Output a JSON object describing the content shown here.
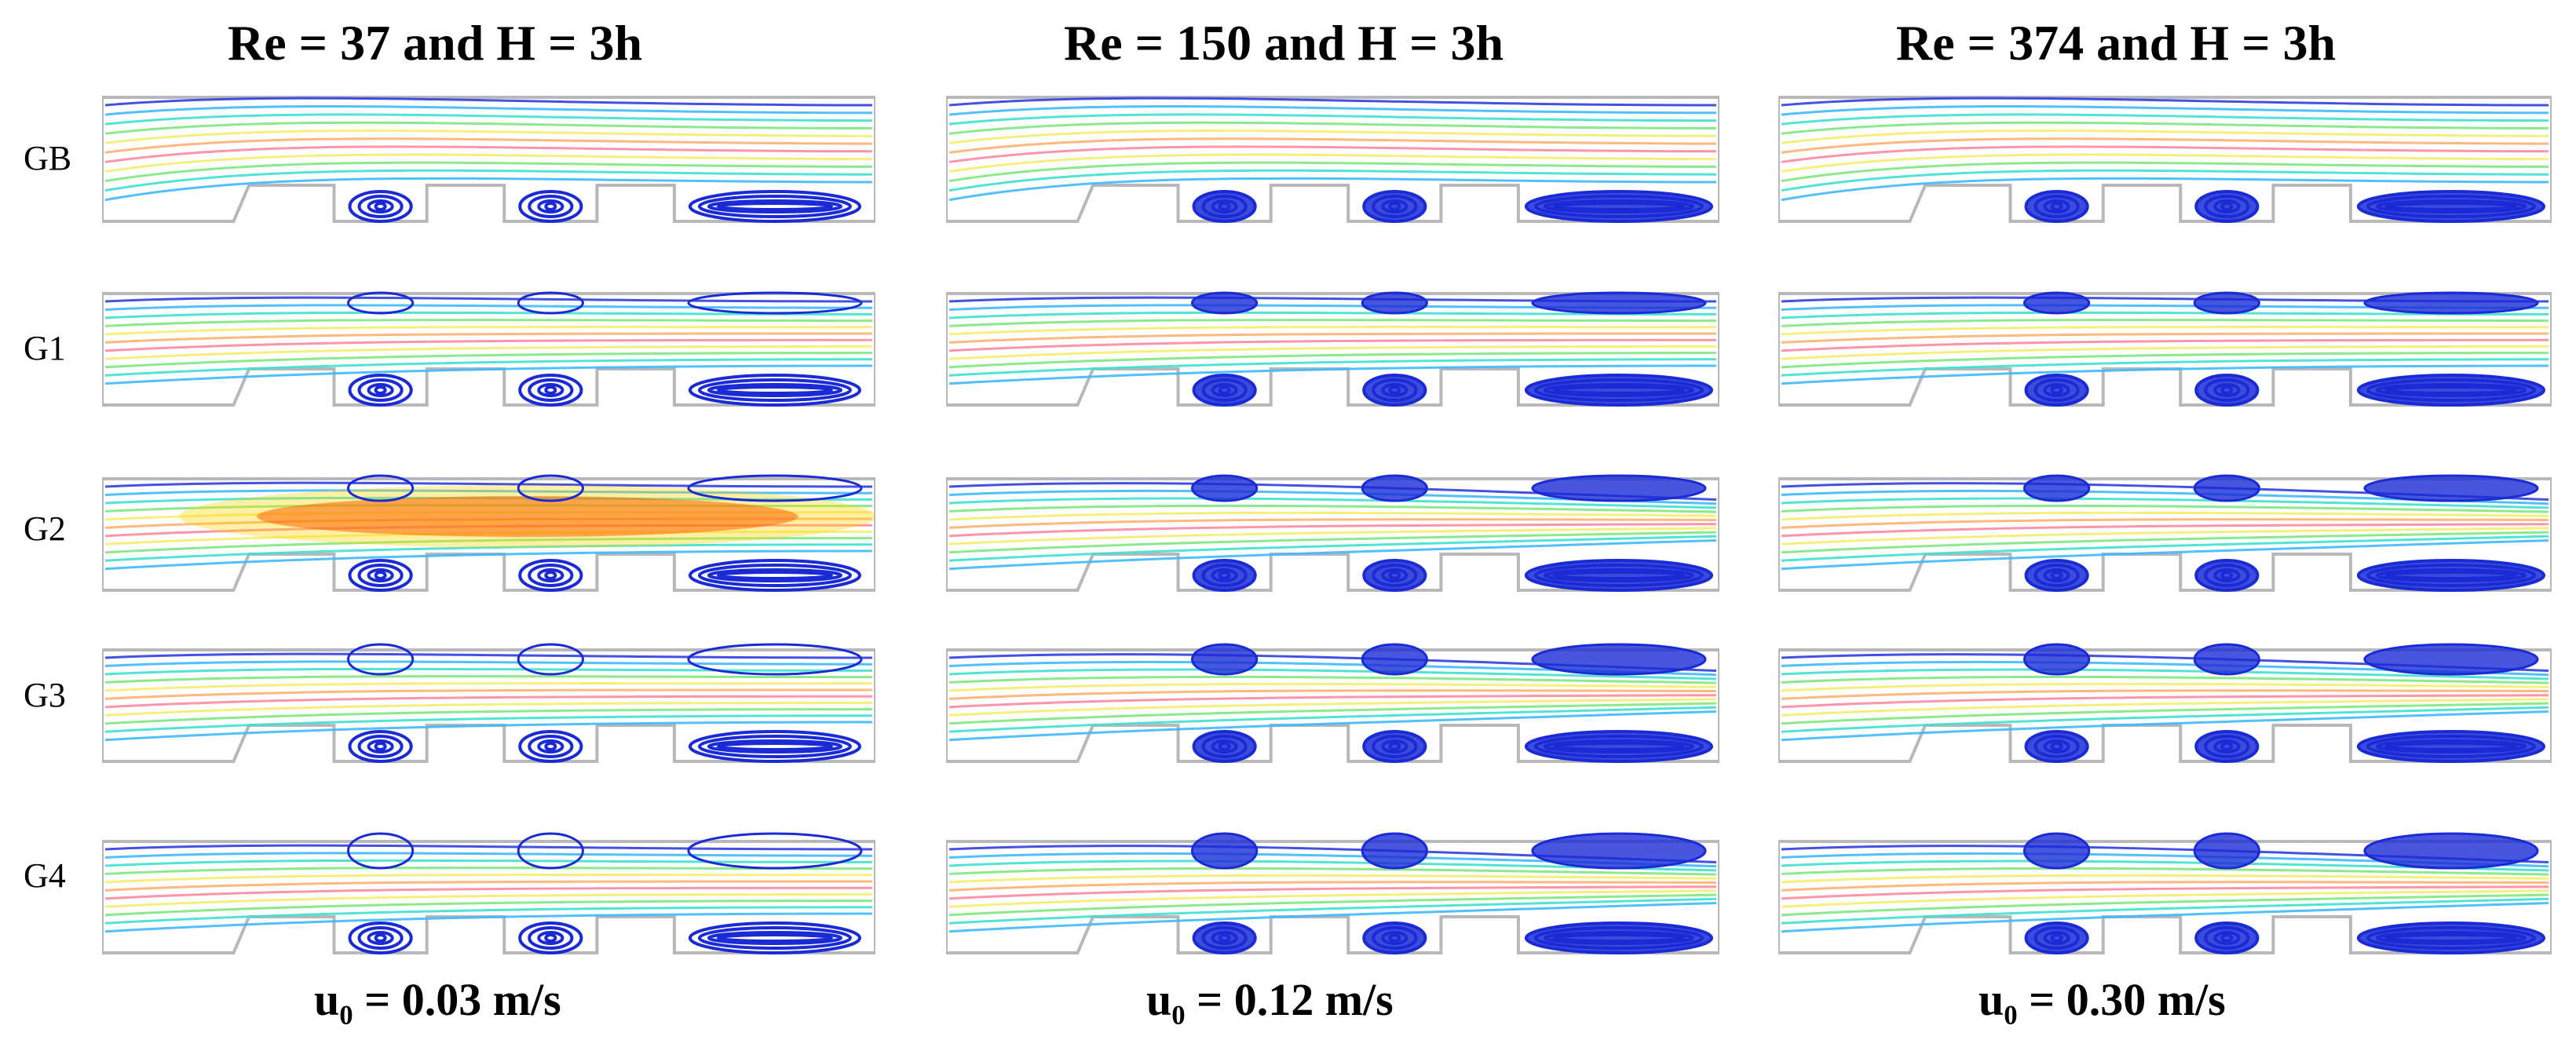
{
  "columns": [
    {
      "title": "Re = 37 and H = 3h",
      "velocity": "u₀ = 0.03 m/s"
    },
    {
      "title": "Re = 150 and H = 3h",
      "velocity": "u₀ = 0.12 m/s"
    },
    {
      "title": "Re = 374 and H = 3h",
      "velocity": "u₀ = 0.30 m/s"
    }
  ],
  "rows": [
    "GB",
    "G1",
    "G2",
    "G3",
    "G4"
  ],
  "colors": {
    "wall": "#b8b8bc",
    "vortex": "#1a2bd6",
    "streamlines": [
      "#2f3fe0",
      "#3fb8ff",
      "#40e0d0",
      "#7fe87f",
      "#f4ee70",
      "#ffb070",
      "#ff8aa0",
      "#f4ee70",
      "#7fe87f",
      "#40e0d0",
      "#3fb8ff"
    ],
    "jet": "#ff2a00"
  }
}
